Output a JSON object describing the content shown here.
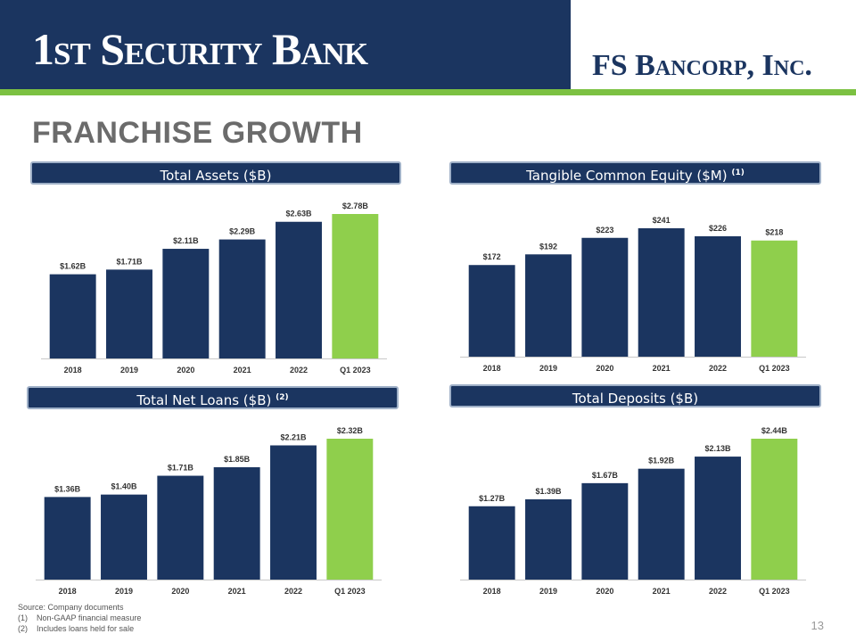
{
  "header": {
    "left_logo": "1st Security Bank",
    "right_logo": "FS Bancorp, Inc."
  },
  "title": "FRANCHISE GROWTH",
  "colors": {
    "navy": "#1b3560",
    "green": "#8fcf4c",
    "accent_line": "#7cc142"
  },
  "panels": [
    {
      "title": "Total Assets ($B)",
      "sup": ""
    },
    {
      "title": "Tangible Common Equity ($M) ",
      "sup": "(1)"
    },
    {
      "title": "Total Net Loans ($B) ",
      "sup": "(2)"
    },
    {
      "title": "Total Deposits ($B)",
      "sup": ""
    }
  ],
  "chart_data": [
    {
      "type": "bar",
      "title": "Total Assets ($B)",
      "categories": [
        "2018",
        "2019",
        "2020",
        "2021",
        "2022",
        "Q1 2023"
      ],
      "values": [
        1.62,
        1.71,
        2.11,
        2.29,
        2.63,
        2.78
      ],
      "labels": [
        "$1.62B",
        "$1.71B",
        "$2.11B",
        "$2.29B",
        "$2.63B",
        "$2.78B"
      ],
      "highlight_last": true,
      "ylim": [
        0,
        2.78
      ]
    },
    {
      "type": "bar",
      "title": "Tangible Common Equity ($M)",
      "categories": [
        "2018",
        "2019",
        "2020",
        "2021",
        "2022",
        "Q1 2023"
      ],
      "values": [
        172,
        192,
        223,
        241,
        226,
        218
      ],
      "labels": [
        "$172",
        "$192",
        "$223",
        "$241",
        "$226",
        "$218"
      ],
      "highlight_last": true,
      "ylim": [
        0,
        241
      ]
    },
    {
      "type": "bar",
      "title": "Total Net Loans ($B)",
      "categories": [
        "2018",
        "2019",
        "2020",
        "2021",
        "2022",
        "Q1 2023"
      ],
      "values": [
        1.36,
        1.4,
        1.71,
        1.85,
        2.21,
        2.32
      ],
      "labels": [
        "$1.36B",
        "$1.40B",
        "$1.71B",
        "$1.85B",
        "$2.21B",
        "$2.32B"
      ],
      "highlight_last": true,
      "ylim": [
        0,
        2.32
      ]
    },
    {
      "type": "bar",
      "title": "Total Deposits ($B)",
      "categories": [
        "2018",
        "2019",
        "2020",
        "2021",
        "2022",
        "Q1 2023"
      ],
      "values": [
        1.27,
        1.39,
        1.67,
        1.92,
        2.13,
        2.44
      ],
      "labels": [
        "$1.27B",
        "$1.39B",
        "$1.67B",
        "$1.92B",
        "$2.13B",
        "$2.44B"
      ],
      "highlight_last": true,
      "ylim": [
        0,
        2.44
      ]
    }
  ],
  "footer": {
    "source": "Source: Company documents",
    "notes": [
      {
        "marker": "(1)",
        "text": "Non-GAAP financial measure"
      },
      {
        "marker": "(2)",
        "text": "Includes loans held for sale"
      }
    ]
  },
  "page_number": "13"
}
